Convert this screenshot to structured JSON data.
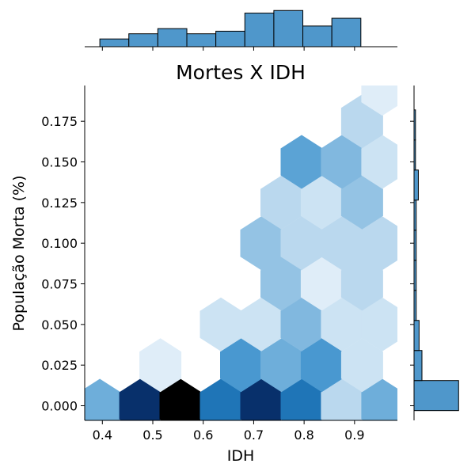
{
  "chart_data": {
    "type": "hexbin-jointplot",
    "title": "Mortes X IDH",
    "xlabel": "IDH",
    "ylabel": "População Morta (%)",
    "xlim": [
      0.365,
      0.985
    ],
    "ylim": [
      -0.009,
      0.197
    ],
    "x_ticks": [
      "0.4",
      "0.5",
      "0.6",
      "0.7",
      "0.8",
      "0.9"
    ],
    "y_ticks": [
      "0.000",
      "0.025",
      "0.050",
      "0.075",
      "0.100",
      "0.125",
      "0.150",
      "0.175"
    ],
    "hex_cells": [
      {
        "x": 0.395,
        "y": 0.0,
        "level": 0.35
      },
      {
        "x": 0.475,
        "y": 0.0,
        "level": 0.85
      },
      {
        "x": 0.555,
        "y": 0.0,
        "level": 1.0
      },
      {
        "x": 0.635,
        "y": 0.0,
        "level": 0.6
      },
      {
        "x": 0.715,
        "y": 0.0,
        "level": 0.85
      },
      {
        "x": 0.795,
        "y": 0.0,
        "level": 0.6
      },
      {
        "x": 0.875,
        "y": 0.0,
        "level": 0.15
      },
      {
        "x": 0.955,
        "y": 0.0,
        "level": 0.35
      },
      {
        "x": 0.515,
        "y": 0.025,
        "level": 0.05
      },
      {
        "x": 0.675,
        "y": 0.025,
        "level": 0.45
      },
      {
        "x": 0.755,
        "y": 0.025,
        "level": 0.35
      },
      {
        "x": 0.835,
        "y": 0.025,
        "level": 0.45
      },
      {
        "x": 0.915,
        "y": 0.025,
        "level": 0.1
      },
      {
        "x": 0.635,
        "y": 0.05,
        "level": 0.1
      },
      {
        "x": 0.715,
        "y": 0.05,
        "level": 0.1
      },
      {
        "x": 0.795,
        "y": 0.05,
        "level": 0.3
      },
      {
        "x": 0.875,
        "y": 0.05,
        "level": 0.1
      },
      {
        "x": 0.955,
        "y": 0.05,
        "level": 0.1
      },
      {
        "x": 0.755,
        "y": 0.075,
        "level": 0.25
      },
      {
        "x": 0.835,
        "y": 0.075,
        "level": 0.05
      },
      {
        "x": 0.915,
        "y": 0.075,
        "level": 0.15
      },
      {
        "x": 0.715,
        "y": 0.1,
        "level": 0.25
      },
      {
        "x": 0.795,
        "y": 0.1,
        "level": 0.15
      },
      {
        "x": 0.875,
        "y": 0.1,
        "level": 0.15
      },
      {
        "x": 0.955,
        "y": 0.1,
        "level": 0.15
      },
      {
        "x": 0.755,
        "y": 0.125,
        "level": 0.15
      },
      {
        "x": 0.835,
        "y": 0.125,
        "level": 0.1
      },
      {
        "x": 0.915,
        "y": 0.125,
        "level": 0.25
      },
      {
        "x": 0.795,
        "y": 0.15,
        "level": 0.4
      },
      {
        "x": 0.875,
        "y": 0.15,
        "level": 0.3
      },
      {
        "x": 0.955,
        "y": 0.15,
        "level": 0.1
      },
      {
        "x": 0.915,
        "y": 0.175,
        "level": 0.15
      },
      {
        "x": 0.955,
        "y": 0.195,
        "level": 0.05
      }
    ],
    "x_hist": {
      "edges": [
        0.395,
        0.4525,
        0.51,
        0.5675,
        0.625,
        0.6825,
        0.74,
        0.7975,
        0.855,
        0.9125,
        0.97
      ],
      "counts": [
        3,
        5,
        7,
        5,
        6,
        13,
        14,
        8,
        11,
        0
      ],
      "ymax": 15
    },
    "y_hist": {
      "edges": [
        -0.003,
        0.0155,
        0.034,
        0.0525,
        0.071,
        0.0895,
        0.108,
        0.1265,
        0.145,
        0.1635,
        0.182
      ],
      "counts": [
        62,
        11,
        7,
        3,
        3,
        3,
        3,
        6,
        2,
        2
      ],
      "xmax": 65
    },
    "colors": {
      "fill": "#4f97cb",
      "edge": "#000000",
      "hex_light": "#f2f8fd",
      "hex_mid": "#2383c6",
      "hex_dark": "#08306b"
    },
    "grid": false
  }
}
